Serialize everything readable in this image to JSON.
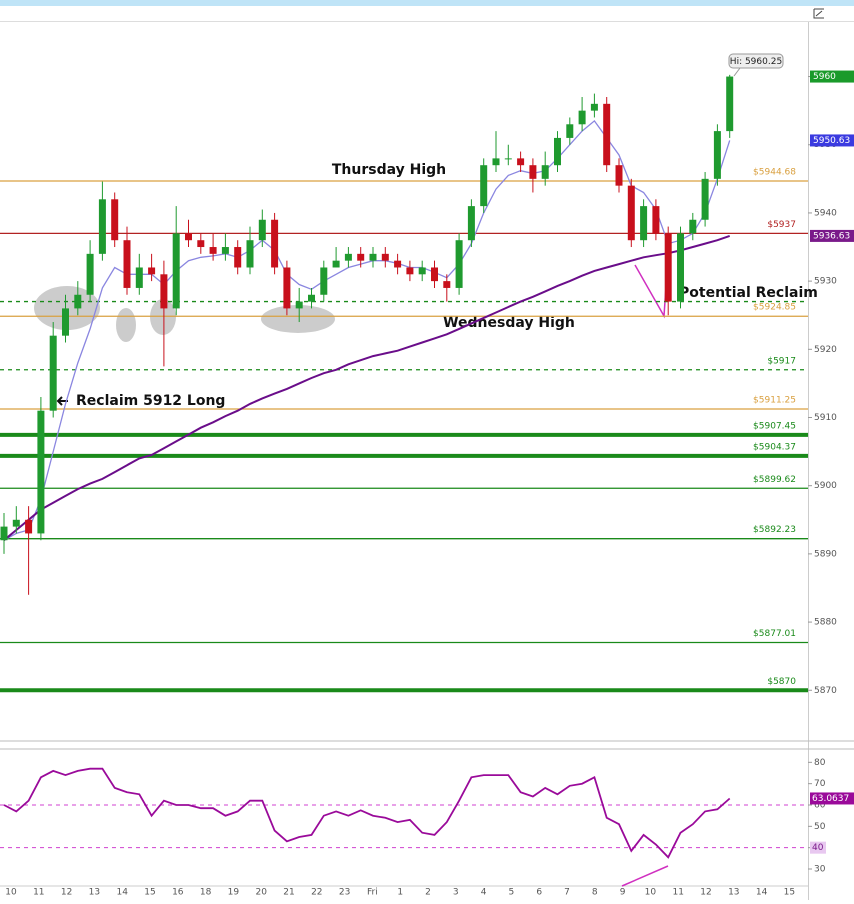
{
  "chart_data": [
    {
      "type": "candlestick",
      "open": [
        5892,
        5894,
        5895,
        5893,
        5911,
        5922,
        5926,
        5928,
        5934,
        5942,
        5936,
        5929,
        5932,
        5931,
        5926,
        5937,
        5936,
        5935,
        5934,
        5935,
        5932,
        5936,
        5939,
        5932,
        5926,
        5927,
        5928,
        5932,
        5933,
        5934,
        5933,
        5934,
        5933,
        5932,
        5931,
        5932,
        5930,
        5929,
        5936,
        5941,
        5947,
        5948,
        5948,
        5947,
        5945,
        5947,
        5951,
        5953,
        5955,
        5956,
        5947,
        5944,
        5936,
        5941,
        5937,
        5927,
        5937,
        5939,
        5945,
        5952
      ],
      "high": [
        5896,
        5897,
        5897,
        5913,
        5924,
        5928,
        5930,
        5936,
        5944.6,
        5943,
        5938,
        5934,
        5934,
        5933,
        5941,
        5939,
        5937,
        5937,
        5937,
        5936,
        5938,
        5940.5,
        5940,
        5933,
        5929,
        5929,
        5933,
        5935,
        5935,
        5935,
        5935,
        5935,
        5934,
        5933,
        5933,
        5933,
        5931,
        5937,
        5942,
        5948,
        5952,
        5950,
        5949,
        5948,
        5949,
        5952,
        5954,
        5957,
        5957.5,
        5957,
        5948,
        5945,
        5942,
        5942,
        5938,
        5938,
        5940,
        5946,
        5953,
        5960.25
      ],
      "low": [
        5890,
        5893,
        5884,
        5892,
        5910,
        5921,
        5925,
        5927,
        5933,
        5935,
        5928,
        5928,
        5930,
        5917.5,
        5925,
        5935,
        5934,
        5933,
        5933,
        5931,
        5931,
        5935,
        5931,
        5925,
        5924,
        5926,
        5927,
        5932,
        5932,
        5932,
        5932,
        5932,
        5931,
        5930,
        5930,
        5929,
        5927,
        5928,
        5935,
        5940,
        5946,
        5947,
        5946,
        5943,
        5944,
        5946,
        5950,
        5952,
        5954,
        5946,
        5943,
        5935,
        5935,
        5936,
        5925,
        5926,
        5936,
        5938,
        5944,
        5951
      ],
      "close": [
        5894,
        5895,
        5893,
        5911,
        5922,
        5926,
        5928,
        5934,
        5942,
        5936,
        5929,
        5932,
        5931,
        5926,
        5937,
        5936,
        5935,
        5934,
        5935,
        5932,
        5936,
        5939,
        5932,
        5926,
        5927,
        5928,
        5932,
        5933,
        5934,
        5933,
        5934,
        5933,
        5932,
        5931,
        5932,
        5930,
        5929,
        5936,
        5941,
        5947,
        5948,
        5948,
        5947,
        5945,
        5947,
        5951,
        5953,
        5955,
        5956,
        5947,
        5944,
        5936,
        5941,
        5937,
        5927,
        5937,
        5939,
        5945,
        5952,
        5960
      ],
      "up_color": "#1f9a2f",
      "down_color": "#c8101c",
      "series": [
        {
          "color": "#8a86e0",
          "values": [
            5892,
            5893,
            5893.5,
            5898,
            5905,
            5912,
            5918,
            5923,
            5929,
            5932,
            5931,
            5931,
            5931,
            5929.5,
            5931.5,
            5933,
            5933.5,
            5933.7,
            5934,
            5933.5,
            5934.5,
            5936,
            5934.5,
            5931,
            5929.5,
            5928.8,
            5930,
            5931,
            5932,
            5932.5,
            5933,
            5933,
            5932.6,
            5932,
            5932,
            5931.3,
            5930.5,
            5932.5,
            5935.5,
            5940,
            5943.5,
            5945.5,
            5946.2,
            5945.8,
            5946.2,
            5948,
            5950,
            5952,
            5953.5,
            5951,
            5948.5,
            5944,
            5943,
            5940.5,
            5935.5,
            5936,
            5937,
            5940,
            5945,
            5950.63
          ]
        },
        {
          "color": "#6a0d8a",
          "values": [
            5892,
            5893.5,
            5895,
            5896.5,
            5897.5,
            5898.5,
            5899.5,
            5900.3,
            5901,
            5902,
            5903,
            5904,
            5904.5,
            5905.5,
            5906.5,
            5907.5,
            5908.5,
            5909.3,
            5910.2,
            5911,
            5912,
            5912.8,
            5913.5,
            5914.2,
            5915,
            5915.8,
            5916.5,
            5917,
            5917.8,
            5918.4,
            5919,
            5919.4,
            5919.8,
            5920.4,
            5921,
            5921.6,
            5922.2,
            5923,
            5923.8,
            5924.6,
            5925.4,
            5926.2,
            5927,
            5927.7,
            5928.5,
            5929.3,
            5930,
            5930.8,
            5931.5,
            5932,
            5932.5,
            5933,
            5933.5,
            5933.8,
            5934.1,
            5934.5,
            5935,
            5935.5,
            5936,
            5936.63
          ]
        }
      ],
      "levels": {
        "values": [
          5944.68,
          5937,
          5927,
          5924.85,
          5917,
          5911.25,
          5907.45,
          5904.37,
          5899.62,
          5892.23,
          5877.01,
          5870
        ],
        "value_labels": [
          "$5944.68",
          "$5937",
          null,
          "$5924.85",
          "$5917",
          "$5911.25",
          "$5907.45",
          "$5904.37",
          "$5899.62",
          "$5892.23",
          "$5877.01",
          "$5870"
        ],
        "colors": [
          "#d9a040",
          "#b22222",
          "#1a8a1a",
          "#d9a040",
          "#1a8a1a",
          "#d9a040",
          "#1a8a1a",
          "#1a8a1a",
          "#1a8a1a",
          "#1a8a1a",
          "#1a8a1a",
          "#1a8a1a"
        ],
        "dashed": [
          false,
          false,
          true,
          false,
          true,
          false,
          false,
          false,
          false,
          false,
          false,
          false
        ],
        "thick": [
          false,
          false,
          false,
          false,
          false,
          false,
          true,
          true,
          false,
          false,
          false,
          true
        ]
      },
      "price_tags": {
        "values": [
          5960,
          5950.63,
          5936.63
        ],
        "colors": [
          "#1a9a2a",
          "#3a3ae0",
          "#7a1a8a"
        ]
      },
      "annotations": [
        "Thursday High",
        "Wednesday High",
        "Potential Reclaim",
        "Reclaim 5912 Long",
        "Hi: 5960.25"
      ],
      "ylim": [
        5863,
        5968
      ],
      "yticks": [
        5870,
        5880,
        5890,
        5900,
        5910,
        5920,
        5930,
        5940,
        5950,
        5960
      ]
    },
    {
      "type": "line",
      "series": [
        {
          "color": "#9a0a9a",
          "values": [
            60,
            57,
            62,
            73,
            76,
            74,
            76,
            77,
            77,
            68,
            66,
            65,
            55,
            62,
            60,
            60,
            58.5,
            58.5,
            55,
            57,
            62,
            62,
            48,
            43,
            45,
            46,
            55,
            57,
            55,
            57.5,
            55,
            54,
            52,
            53,
            47,
            46,
            52,
            62,
            73,
            74,
            74,
            74,
            66,
            64,
            68,
            65,
            69,
            70,
            73,
            54,
            51,
            38.5,
            46,
            41.5,
            35.5,
            47,
            51,
            57,
            58,
            63.0637
          ]
        }
      ],
      "levels": [
        60,
        40
      ],
      "tags": [
        63.0637,
        40
      ],
      "ylim": [
        22.5,
        82.5
      ],
      "yticks": [
        30,
        40,
        50,
        60,
        70,
        80
      ],
      "x_labels": [
        "10",
        "11",
        "12",
        "13",
        "14",
        "15",
        "16",
        "18",
        "19",
        "20",
        "21",
        "22",
        "23",
        "Fri",
        "1",
        "2",
        "3",
        "4",
        "5",
        "6",
        "7",
        "8",
        "9",
        "10",
        "11",
        "12",
        "13",
        "14",
        "15"
      ]
    }
  ]
}
